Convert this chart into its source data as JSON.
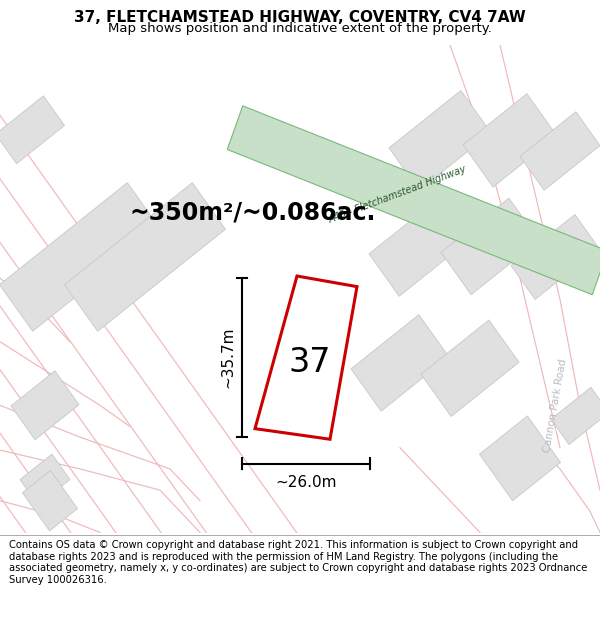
{
  "title": "37, FLETCHAMSTEAD HIGHWAY, COVENTRY, CV4 7AW",
  "subtitle": "Map shows position and indicative extent of the property.",
  "footer": "Contains OS data © Crown copyright and database right 2021. This information is subject to Crown copyright and database rights 2023 and is reproduced with the permission of HM Land Registry. The polygons (including the associated geometry, namely x, y co-ordinates) are subject to Crown copyright and database rights 2023 Ordnance Survey 100026316.",
  "area_label": "~350m²/~0.086ac.",
  "width_label": "~26.0m",
  "height_label": "~35.7m",
  "property_number": "37",
  "map_bg": "#f8f8f8",
  "road_green_fill": "#c8dfc8",
  "road_green_edge": "#7ab87a",
  "road_label_color": "#2d5a2d",
  "building_fill": "#e0e0e0",
  "building_edge": "#c8c8c8",
  "road_pink": "#f0b8b8",
  "property_red": "#cc0000",
  "dim_color": "#000000",
  "cannon_road_color": "#bbbbbb",
  "title_fontsize": 11,
  "subtitle_fontsize": 9.5,
  "footer_fontsize": 7.2,
  "area_fontsize": 17,
  "dim_fontsize": 11,
  "num_fontsize": 24
}
